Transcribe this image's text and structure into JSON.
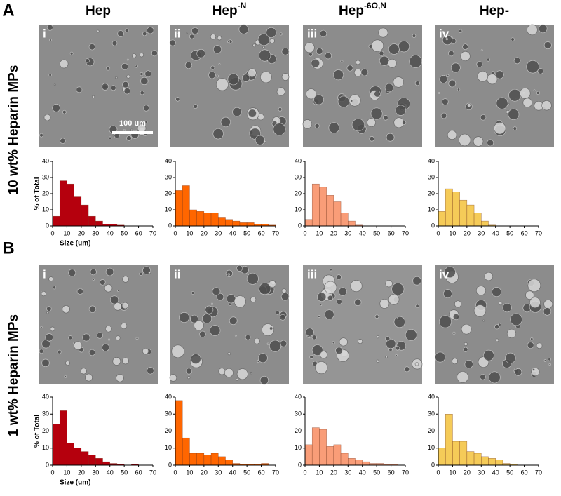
{
  "figure": {
    "panel_letters": [
      "A",
      "B"
    ],
    "columns": [
      [
        "Hep"
      ],
      [
        "Hep",
        "-N"
      ],
      [
        "Hep",
        "-6O,N"
      ],
      [
        "Hep-"
      ]
    ],
    "rows": [
      "10 wt% Heparin MPs",
      "1 wt% Heparin MPs"
    ],
    "panel_labels": [
      "i",
      "ii",
      "iii",
      "iv"
    ],
    "scale_bar": "100 um"
  },
  "chart_data": [
    {
      "type": "histogram",
      "color": "#b5000d",
      "ylabel": "% of Total",
      "xlabel": "Size (um)",
      "bins": [
        0,
        5,
        10,
        15,
        20,
        25,
        30,
        35,
        40,
        45,
        50,
        55,
        60,
        65,
        70
      ],
      "values": [
        6,
        28,
        26,
        18,
        13,
        6,
        3,
        1,
        1,
        0.5,
        0,
        0,
        0,
        0
      ],
      "xlim": [
        0,
        70
      ],
      "xticks": [
        0,
        10,
        20,
        30,
        40,
        50,
        60,
        70
      ],
      "ylim": [
        0,
        40
      ],
      "yticks": [
        0,
        10,
        20,
        30,
        40
      ]
    },
    {
      "type": "histogram",
      "color": "#ff6600",
      "bins": [
        0,
        5,
        10,
        15,
        20,
        25,
        30,
        35,
        40,
        45,
        50,
        55,
        60,
        65,
        70
      ],
      "values": [
        22,
        25,
        10,
        9,
        8,
        8,
        5,
        4,
        3,
        2,
        2,
        1,
        1,
        0.5
      ],
      "xlim": [
        0,
        70
      ],
      "xticks": [
        0,
        10,
        20,
        30,
        40,
        50,
        60,
        70
      ],
      "ylim": [
        0,
        40
      ],
      "yticks": [
        0,
        10,
        20,
        30,
        40
      ]
    },
    {
      "type": "histogram",
      "color": "#f99d78",
      "bins": [
        0,
        5,
        10,
        15,
        20,
        25,
        30,
        35,
        40,
        45,
        50,
        55,
        60,
        65,
        70
      ],
      "values": [
        4,
        26,
        24,
        19,
        15,
        8,
        3,
        0.5,
        0,
        0,
        0,
        0,
        0,
        0
      ],
      "xlim": [
        0,
        70
      ],
      "xticks": [
        0,
        10,
        20,
        30,
        40,
        50,
        60,
        70
      ],
      "ylim": [
        0,
        40
      ],
      "yticks": [
        0,
        10,
        20,
        30,
        40
      ]
    },
    {
      "type": "histogram",
      "color": "#f5cb58",
      "bins": [
        0,
        5,
        10,
        15,
        20,
        25,
        30,
        35,
        40,
        45,
        50,
        55,
        60,
        65,
        70
      ],
      "values": [
        9,
        23,
        21,
        16,
        13,
        8,
        3,
        0.5,
        0,
        0,
        0,
        0,
        0,
        0
      ],
      "xlim": [
        0,
        70
      ],
      "xticks": [
        0,
        10,
        20,
        30,
        40,
        50,
        60,
        70
      ],
      "ylim": [
        0,
        40
      ],
      "yticks": [
        0,
        10,
        20,
        30,
        40
      ]
    },
    {
      "type": "histogram",
      "color": "#b5000d",
      "ylabel": "% of Total",
      "xlabel": "Size (um)",
      "bins": [
        0,
        5,
        10,
        15,
        20,
        25,
        30,
        35,
        40,
        45,
        50,
        55,
        60,
        65,
        70
      ],
      "values": [
        24,
        32,
        13,
        10,
        8,
        6,
        4,
        2,
        1,
        0.5,
        0,
        0.5,
        0,
        0
      ],
      "xlim": [
        0,
        70
      ],
      "xticks": [
        0,
        10,
        20,
        30,
        40,
        50,
        60,
        70
      ],
      "ylim": [
        0,
        40
      ],
      "yticks": [
        0,
        10,
        20,
        30,
        40
      ]
    },
    {
      "type": "histogram",
      "color": "#ff6600",
      "bins": [
        0,
        5,
        10,
        15,
        20,
        25,
        30,
        35,
        40,
        45,
        50,
        55,
        60,
        65,
        70
      ],
      "values": [
        38,
        16,
        7,
        7,
        6,
        7,
        5,
        3,
        1,
        0.5,
        0.5,
        0.5,
        1,
        0
      ],
      "xlim": [
        0,
        70
      ],
      "xticks": [
        0,
        10,
        20,
        30,
        40,
        50,
        60,
        70
      ],
      "ylim": [
        0,
        40
      ],
      "yticks": [
        0,
        10,
        20,
        30,
        40
      ]
    },
    {
      "type": "histogram",
      "color": "#f99d78",
      "bins": [
        0,
        5,
        10,
        15,
        20,
        25,
        30,
        35,
        40,
        45,
        50,
        55,
        60,
        65,
        70
      ],
      "values": [
        12,
        22,
        21,
        11,
        12,
        7,
        4,
        3,
        2,
        1,
        1,
        0.5,
        0.5,
        0
      ],
      "xlim": [
        0,
        70
      ],
      "xticks": [
        0,
        10,
        20,
        30,
        40,
        50,
        60,
        70
      ],
      "ylim": [
        0,
        40
      ],
      "yticks": [
        0,
        10,
        20,
        30,
        40
      ]
    },
    {
      "type": "histogram",
      "color": "#f5cb58",
      "bins": [
        0,
        5,
        10,
        15,
        20,
        25,
        30,
        35,
        40,
        45,
        50,
        55,
        60,
        65,
        70
      ],
      "values": [
        10,
        30,
        14,
        14,
        8,
        7,
        5,
        4,
        3,
        1,
        0.5,
        0,
        0,
        0
      ],
      "xlim": [
        0,
        70
      ],
      "xticks": [
        0,
        10,
        20,
        30,
        40,
        50,
        60,
        70
      ],
      "ylim": [
        0,
        40
      ],
      "yticks": [
        0,
        10,
        20,
        30,
        40
      ]
    }
  ]
}
